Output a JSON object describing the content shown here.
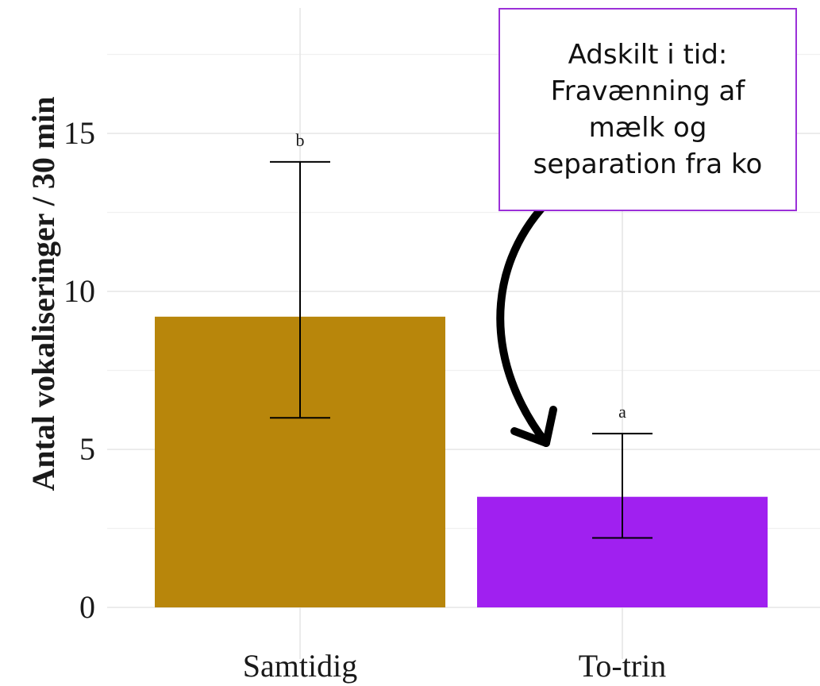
{
  "chart_data": {
    "type": "bar",
    "categories": [
      "Samtidig",
      "To-trin"
    ],
    "values": [
      9.2,
      3.5
    ],
    "error_low": [
      6.0,
      2.2
    ],
    "error_high": [
      14.1,
      5.5
    ],
    "significance_labels": [
      "b",
      "a"
    ],
    "colors": [
      "#B8860B",
      "#A020F0"
    ],
    "ylabel": "Antal vokaliseringer / 30 min",
    "xlabel": "",
    "ylim": [
      0,
      18
    ],
    "yticks": [
      0,
      5,
      10,
      15
    ],
    "grid": true,
    "annotation": {
      "text": "Adskilt i tid:\nFravænning af\nmælk og\nseparation fra ko",
      "target_category": "To-trin",
      "border_color": "#9B30D8"
    }
  }
}
